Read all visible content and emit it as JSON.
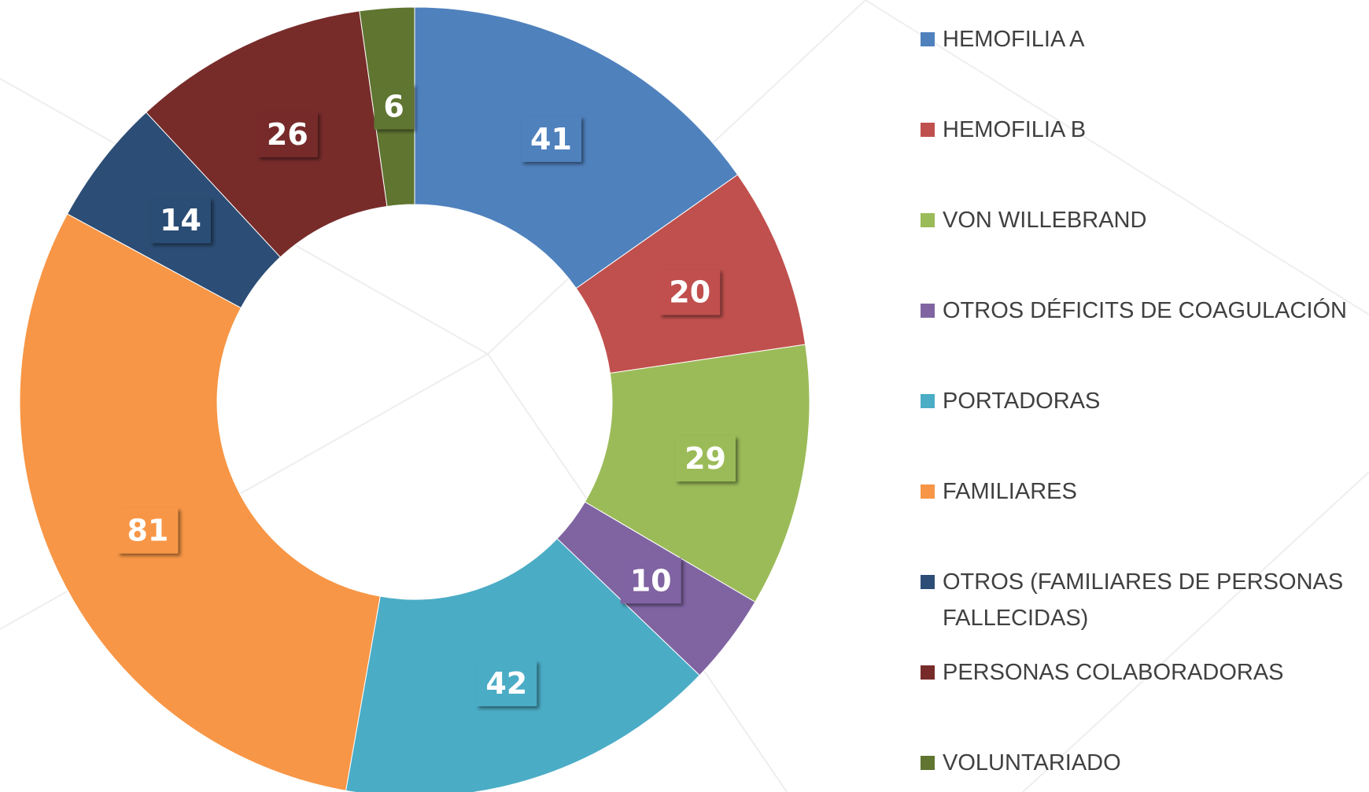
{
  "chart_data": {
    "type": "donut",
    "categories": [
      "HEMOFILIA A",
      "HEMOFILIA B",
      "VON WILLEBRAND",
      "OTROS DÉFICITS DE COAGULACIÓN",
      "PORTADORAS",
      "FAMILIARES",
      "OTROS (FAMILIARES DE PERSONAS FALLECIDAS)",
      "PERSONAS COLABORADORAS",
      "VOLUNTARIADO"
    ],
    "values": [
      41,
      20,
      29,
      10,
      42,
      81,
      14,
      26,
      6
    ],
    "colors": [
      "#4f81bd",
      "#c0504d",
      "#9bbb59",
      "#8064a2",
      "#4bacc6",
      "#f79646",
      "#2c4d75",
      "#772c2a",
      "#5f7530"
    ],
    "legend": "right"
  }
}
